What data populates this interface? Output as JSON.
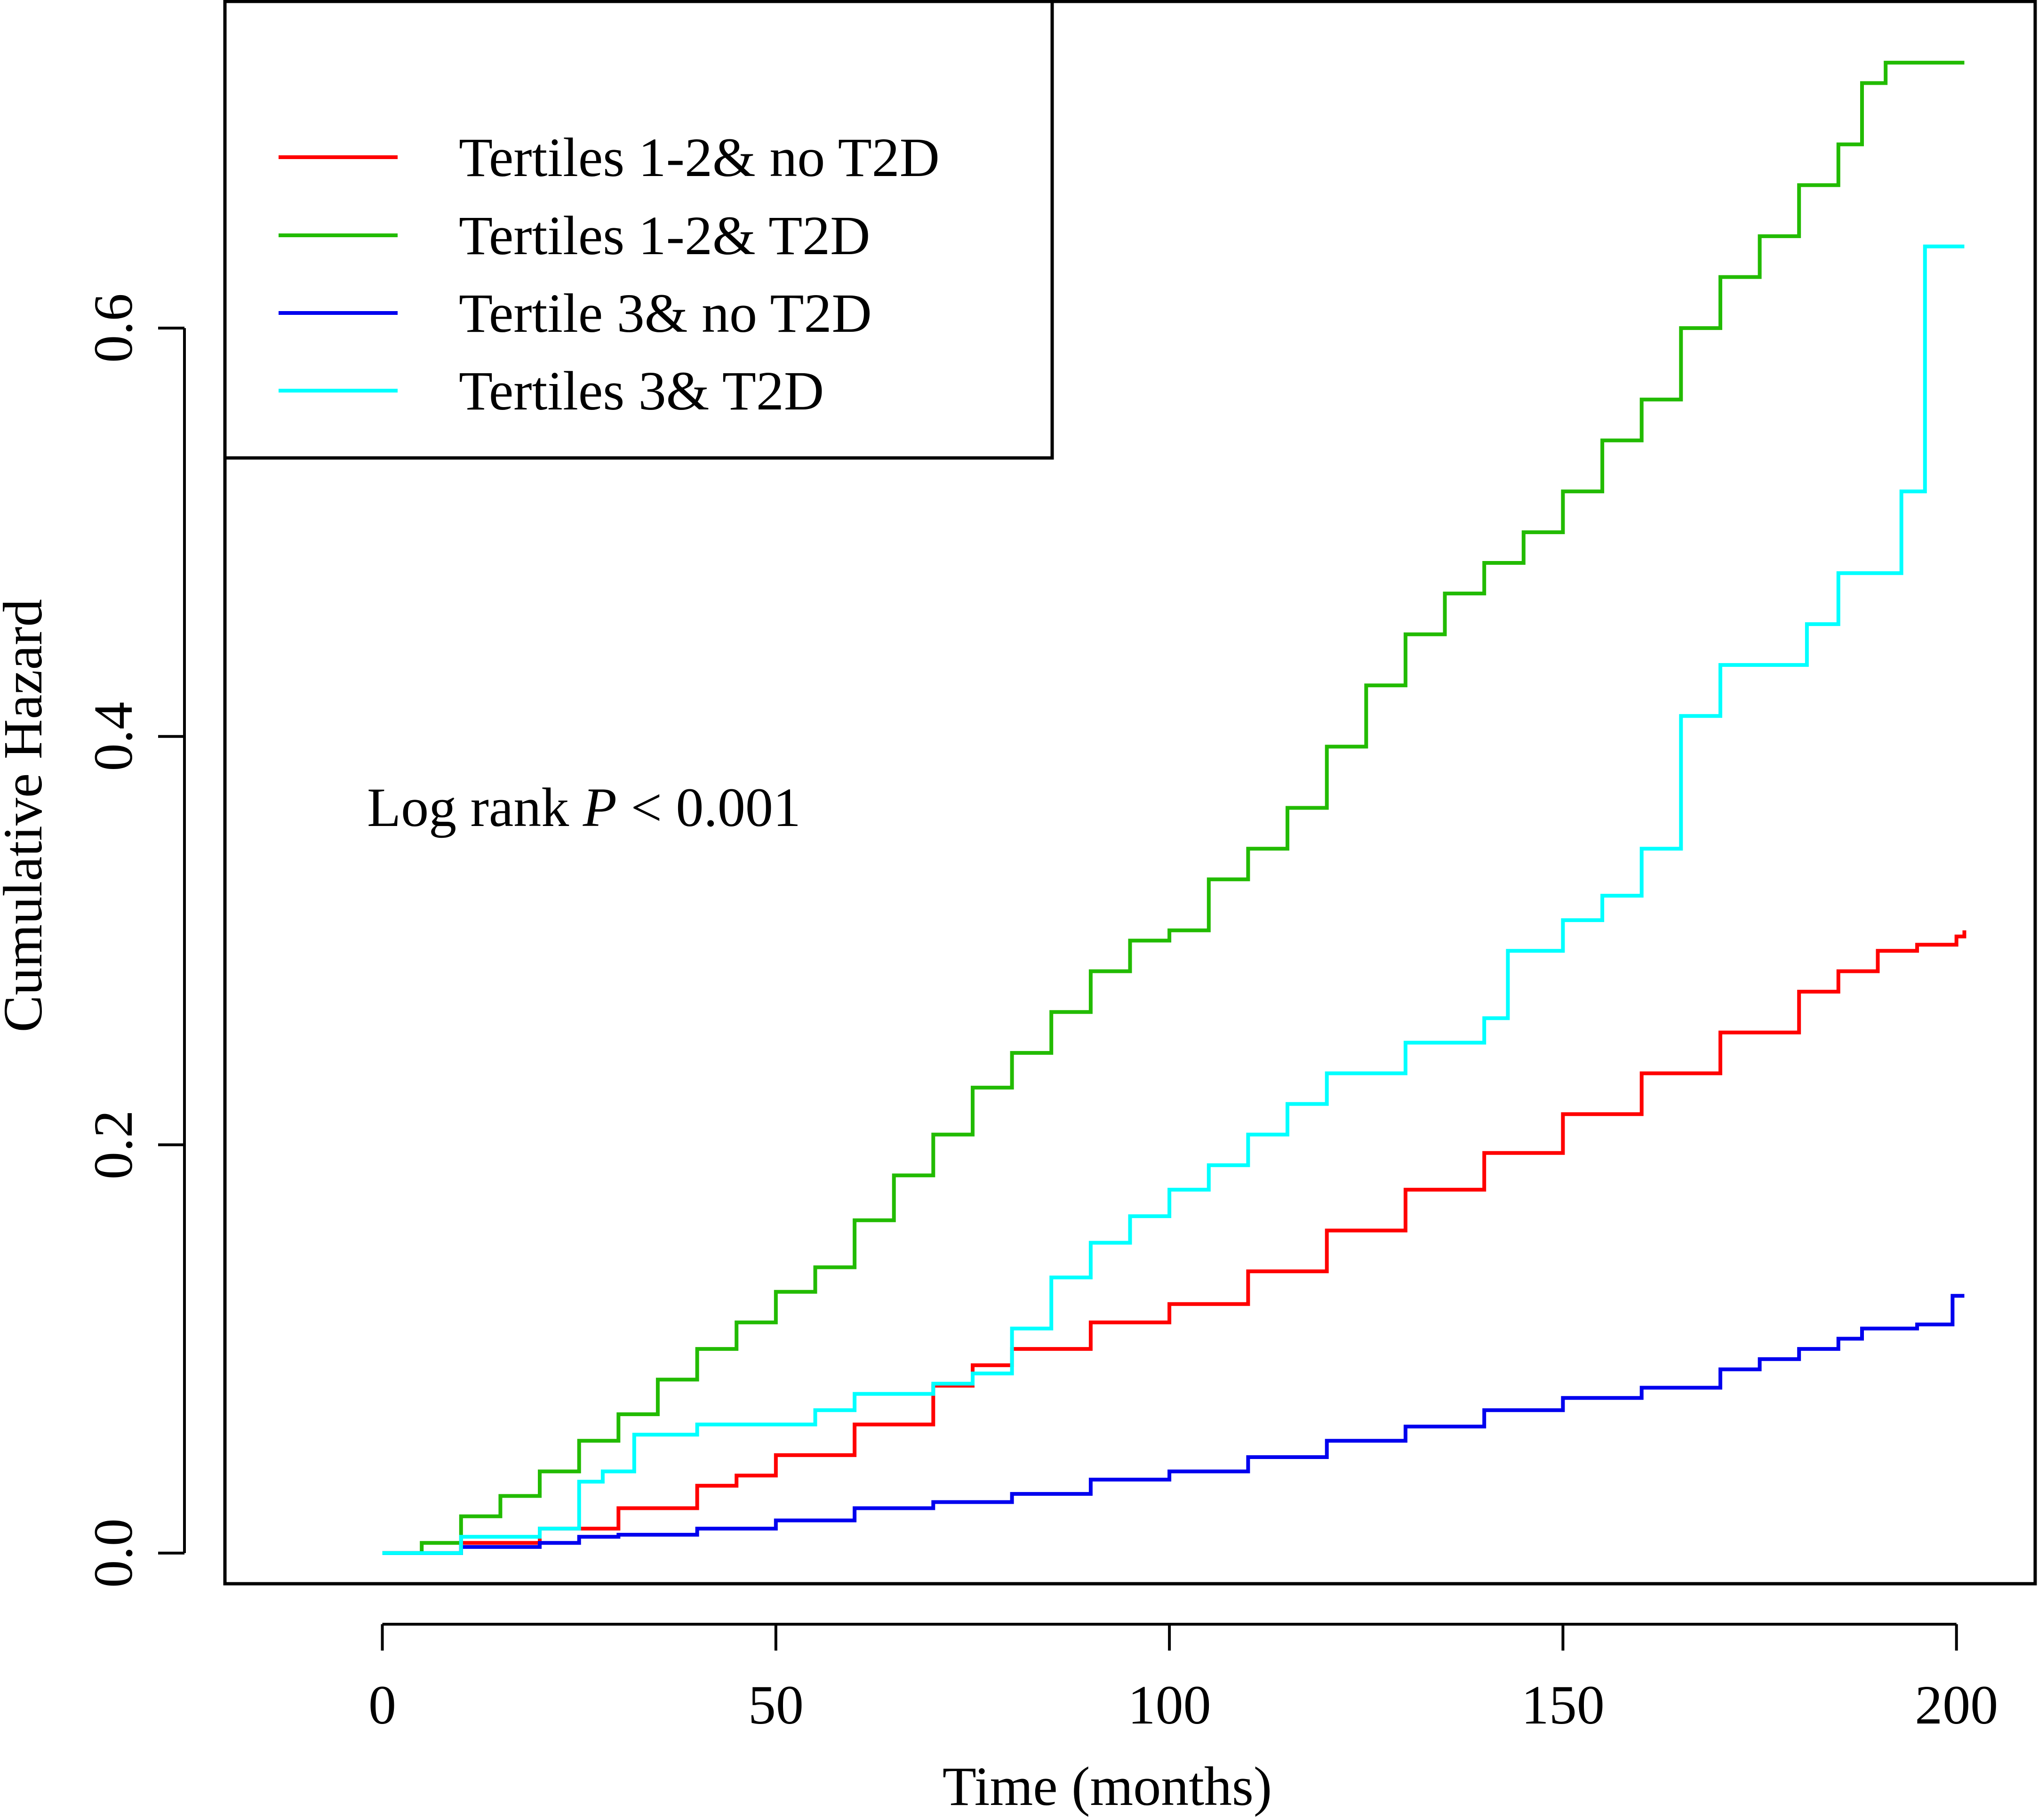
{
  "chart_data": {
    "type": "line",
    "step": true,
    "title": "",
    "xlabel": "Time (months)",
    "ylabel": "Cumulative Hazard",
    "xlim": [
      -20,
      210
    ],
    "ylim": [
      -0.015,
      0.76
    ],
    "x_ticks": [
      0,
      50,
      100,
      150,
      200
    ],
    "x_tick_labels": [
      "0",
      "50",
      "100",
      "150",
      "200"
    ],
    "y_ticks": [
      0.0,
      0.2,
      0.4,
      0.6
    ],
    "y_tick_labels": [
      "0.0",
      "0.2",
      "0.4",
      "0.6"
    ],
    "grid": false,
    "legend_position": "top-left",
    "annotation": {
      "prefix": "Log rank ",
      "italic": "P",
      "suffix": " < 0.001"
    },
    "series": [
      {
        "name": "Tertiles 1-2& no T2D",
        "color": "#ff0000",
        "points": [
          [
            0,
            0
          ],
          [
            10,
            0.005
          ],
          [
            20,
            0.012
          ],
          [
            30,
            0.022
          ],
          [
            40,
            0.033
          ],
          [
            45,
            0.038
          ],
          [
            50,
            0.048
          ],
          [
            60,
            0.063
          ],
          [
            70,
            0.082
          ],
          [
            75,
            0.092
          ],
          [
            80,
            0.1
          ],
          [
            90,
            0.113
          ],
          [
            100,
            0.122
          ],
          [
            110,
            0.138
          ],
          [
            120,
            0.158
          ],
          [
            130,
            0.178
          ],
          [
            140,
            0.196
          ],
          [
            150,
            0.215
          ],
          [
            160,
            0.235
          ],
          [
            170,
            0.255
          ],
          [
            180,
            0.275
          ],
          [
            185,
            0.285
          ],
          [
            190,
            0.295
          ],
          [
            195,
            0.298
          ],
          [
            200,
            0.302
          ],
          [
            201,
            0.305
          ]
        ]
      },
      {
        "name": "Tertiles 1-2& T2D",
        "color": "#22bb00",
        "points": [
          [
            0,
            0
          ],
          [
            5,
            0.005
          ],
          [
            10,
            0.018
          ],
          [
            15,
            0.028
          ],
          [
            20,
            0.04
          ],
          [
            25,
            0.055
          ],
          [
            30,
            0.068
          ],
          [
            35,
            0.085
          ],
          [
            40,
            0.1
          ],
          [
            45,
            0.113
          ],
          [
            50,
            0.128
          ],
          [
            55,
            0.14
          ],
          [
            60,
            0.163
          ],
          [
            65,
            0.185
          ],
          [
            70,
            0.205
          ],
          [
            75,
            0.228
          ],
          [
            80,
            0.245
          ],
          [
            85,
            0.265
          ],
          [
            90,
            0.285
          ],
          [
            95,
            0.3
          ],
          [
            100,
            0.305
          ],
          [
            105,
            0.33
          ],
          [
            110,
            0.345
          ],
          [
            115,
            0.365
          ],
          [
            120,
            0.395
          ],
          [
            125,
            0.425
          ],
          [
            130,
            0.45
          ],
          [
            135,
            0.47
          ],
          [
            140,
            0.485
          ],
          [
            145,
            0.5
          ],
          [
            150,
            0.52
          ],
          [
            155,
            0.545
          ],
          [
            160,
            0.565
          ],
          [
            165,
            0.6
          ],
          [
            170,
            0.625
          ],
          [
            175,
            0.645
          ],
          [
            180,
            0.67
          ],
          [
            185,
            0.69
          ],
          [
            188,
            0.72
          ],
          [
            191,
            0.73
          ],
          [
            201,
            0.73
          ]
        ]
      },
      {
        "name": "Tertile 3& no T2D",
        "color": "#0000ee",
        "points": [
          [
            0,
            0
          ],
          [
            10,
            0.003
          ],
          [
            20,
            0.005
          ],
          [
            25,
            0.008
          ],
          [
            30,
            0.009
          ],
          [
            40,
            0.012
          ],
          [
            50,
            0.016
          ],
          [
            60,
            0.022
          ],
          [
            70,
            0.025
          ],
          [
            80,
            0.029
          ],
          [
            90,
            0.036
          ],
          [
            100,
            0.04
          ],
          [
            110,
            0.047
          ],
          [
            120,
            0.055
          ],
          [
            130,
            0.062
          ],
          [
            140,
            0.07
          ],
          [
            150,
            0.076
          ],
          [
            160,
            0.081
          ],
          [
            170,
            0.09
          ],
          [
            175,
            0.095
          ],
          [
            180,
            0.1
          ],
          [
            185,
            0.105
          ],
          [
            188,
            0.11
          ],
          [
            195,
            0.112
          ],
          [
            199,
            0.112
          ],
          [
            199.5,
            0.126
          ],
          [
            201,
            0.126
          ]
        ]
      },
      {
        "name": "Tertiles 3& T2D",
        "color": "#00ffff",
        "points": [
          [
            0,
            0
          ],
          [
            10,
            0.008
          ],
          [
            20,
            0.012
          ],
          [
            25,
            0.035
          ],
          [
            28,
            0.04
          ],
          [
            32,
            0.058
          ],
          [
            40,
            0.063
          ],
          [
            55,
            0.07
          ],
          [
            60,
            0.078
          ],
          [
            70,
            0.083
          ],
          [
            75,
            0.088
          ],
          [
            80,
            0.11
          ],
          [
            85,
            0.135
          ],
          [
            90,
            0.152
          ],
          [
            95,
            0.165
          ],
          [
            100,
            0.178
          ],
          [
            105,
            0.19
          ],
          [
            110,
            0.205
          ],
          [
            115,
            0.22
          ],
          [
            120,
            0.235
          ],
          [
            130,
            0.25
          ],
          [
            140,
            0.262
          ],
          [
            143,
            0.295
          ],
          [
            150,
            0.31
          ],
          [
            155,
            0.322
          ],
          [
            160,
            0.345
          ],
          [
            165,
            0.41
          ],
          [
            170,
            0.435
          ],
          [
            181,
            0.435
          ],
          [
            181,
            0.455
          ],
          [
            185,
            0.48
          ],
          [
            193,
            0.48
          ],
          [
            193,
            0.52
          ],
          [
            196,
            0.52
          ],
          [
            196,
            0.64
          ],
          [
            201,
            0.64
          ]
        ]
      }
    ]
  }
}
